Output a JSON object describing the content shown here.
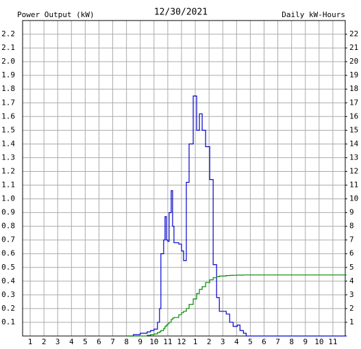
{
  "chart_data": {
    "type": "step-line",
    "title": "12/30/2021",
    "y_label": "Power Output (kW)",
    "y2_label": "Daily kW-Hours",
    "x": [
      8,
      8.5,
      9,
      9.5,
      9.75,
      10,
      10.25,
      10.4,
      10.5,
      10.7,
      10.8,
      10.9,
      11,
      11.1,
      11.25,
      11.35,
      11.45,
      11.8,
      12,
      12.15,
      12.35,
      12.55,
      12.85,
      13.1,
      13.3,
      13.5,
      13.75,
      14.05,
      14.3,
      14.55,
      14.75,
      15.25,
      15.5,
      15.75,
      16.05,
      16.25,
      16.5,
      16.7,
      17,
      24
    ],
    "series": [
      {
        "color": "#0000cc",
        "axis": "y",
        "values": [
          0,
          0.01,
          0.02,
          0.03,
          0.04,
          0.05,
          0.1,
          0.2,
          0.6,
          0.7,
          0.87,
          0.7,
          0.69,
          0.9,
          1.06,
          0.8,
          0.68,
          0.67,
          0.62,
          0.55,
          1.12,
          1.4,
          1.75,
          1.5,
          1.62,
          1.5,
          1.38,
          1.14,
          0.52,
          0.28,
          0.18,
          0.16,
          0.1,
          0.07,
          0.08,
          0.04,
          0.02,
          0,
          0,
          0
        ]
      },
      {
        "color": "#008800",
        "axis": "y2",
        "values": [
          0,
          0,
          0,
          0.05,
          0.1,
          0.15,
          0.25,
          0.3,
          0.4,
          0.55,
          0.7,
          0.8,
          0.9,
          1.0,
          1.2,
          1.3,
          1.35,
          1.55,
          1.7,
          1.8,
          2.0,
          2.3,
          2.7,
          3.1,
          3.4,
          3.6,
          3.9,
          4.1,
          4.25,
          4.32,
          4.37,
          4.41,
          4.42,
          4.43,
          4.44,
          4.44,
          4.45,
          4.45,
          4.45,
          4.45
        ]
      }
    ],
    "xlim": [
      0.45,
      23.9
    ],
    "xticks": [
      1,
      2,
      3,
      4,
      5,
      6,
      7,
      8,
      9,
      10,
      11,
      12,
      {
        "value": 13,
        "label": "1"
      },
      {
        "value": 14,
        "label": "2"
      },
      {
        "value": 15,
        "label": "3"
      },
      {
        "value": 16,
        "label": "4"
      },
      {
        "value": 17,
        "label": "5"
      },
      {
        "value": 18,
        "label": "6"
      },
      {
        "value": 19,
        "label": "7"
      },
      {
        "value": 20,
        "label": "8"
      },
      {
        "value": 21,
        "label": "9"
      },
      {
        "value": 22,
        "label": "10"
      },
      {
        "value": 23,
        "label": "11"
      }
    ],
    "ylim": [
      0,
      2.3
    ],
    "yticks": [
      0.1,
      0.2,
      0.3,
      0.4,
      0.5,
      0.6,
      0.7,
      0.8,
      0.9,
      {
        "value": 1,
        "label": "1.0"
      },
      1.1,
      1.2,
      1.3,
      1.4,
      1.5,
      1.6,
      1.7,
      1.8,
      1.9,
      {
        "value": 2,
        "label": "2.0"
      },
      2.1,
      2.2
    ],
    "y2lim": [
      0,
      23
    ],
    "y2ticks": [
      1,
      2,
      3,
      4,
      5,
      6,
      7,
      8,
      9,
      10,
      11,
      12,
      13,
      14,
      15,
      16,
      17,
      18,
      19,
      20,
      21,
      22
    ],
    "grid": true,
    "y_color": "#0000cc",
    "y2_color": "#008800"
  }
}
